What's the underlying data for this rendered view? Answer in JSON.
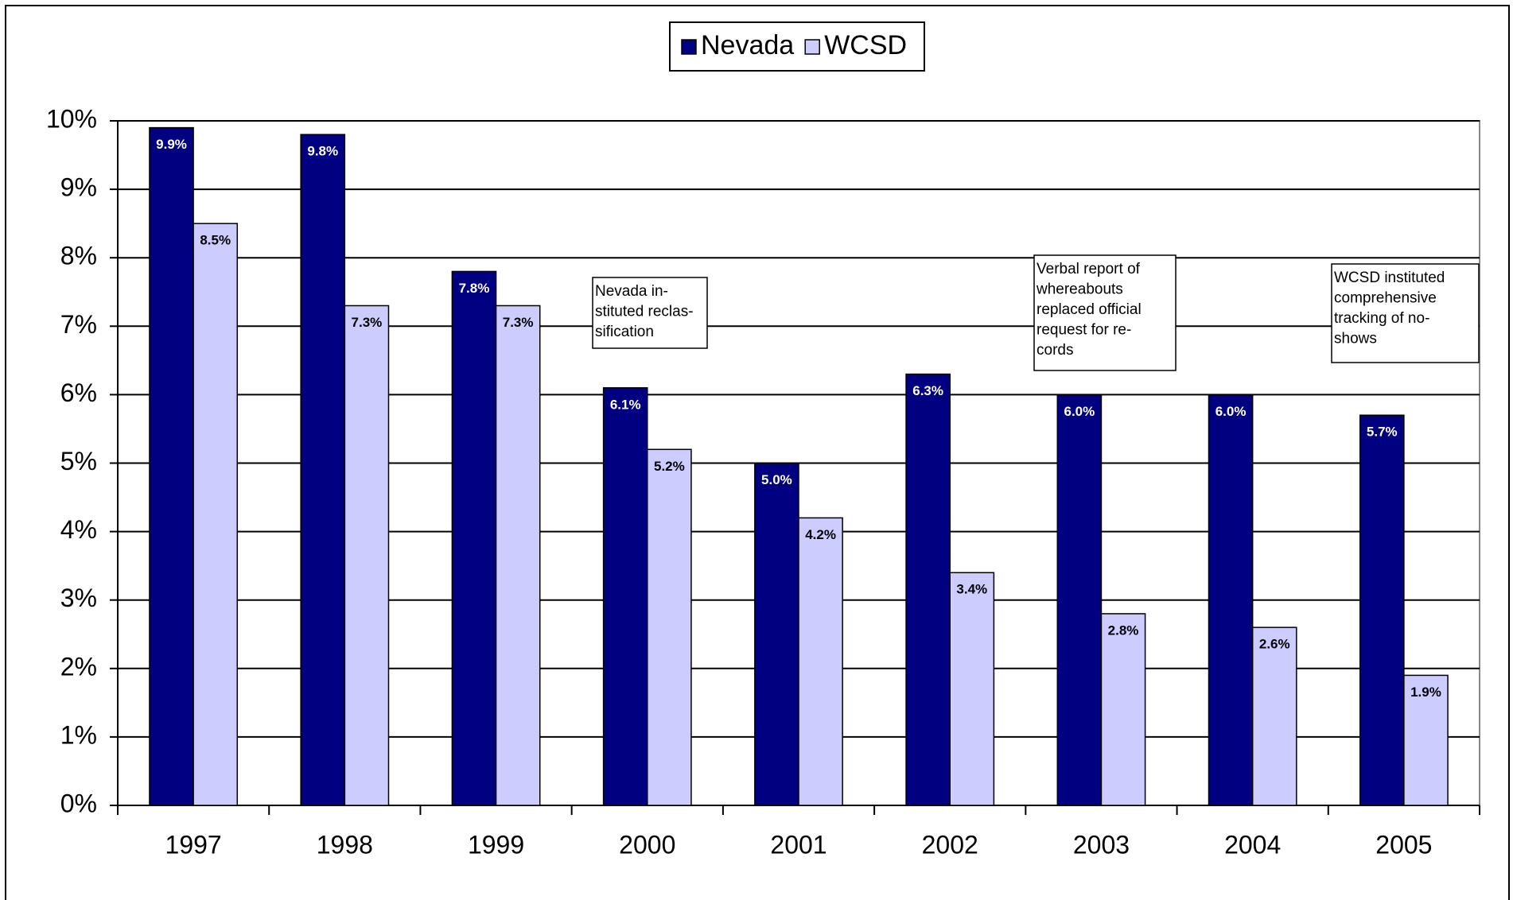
{
  "chart_data": {
    "type": "bar",
    "categories": [
      "1997",
      "1998",
      "1999",
      "2000",
      "2001",
      "2002",
      "2003",
      "2004",
      "2005"
    ],
    "series": [
      {
        "name": "Nevada",
        "color": "#000080",
        "values": [
          9.9,
          9.8,
          7.8,
          6.1,
          5.0,
          6.3,
          6.0,
          6.0,
          5.7
        ],
        "value_labels": [
          "9.9%",
          "9.8%",
          "7.8%",
          "6.1%",
          "5.0%",
          "6.3%",
          "6.0%",
          "6.0%",
          "5.7%"
        ]
      },
      {
        "name": "WCSD",
        "color": "#ccccff",
        "values": [
          8.5,
          7.3,
          7.3,
          5.2,
          4.2,
          3.4,
          2.8,
          2.6,
          1.9
        ],
        "value_labels": [
          "8.5%",
          "7.3%",
          "7.3%",
          "5.2%",
          "4.2%",
          "3.4%",
          "2.8%",
          "2.6%",
          "1.9%"
        ]
      }
    ],
    "ylim": [
      0,
      10
    ],
    "yticks": [
      {
        "value": 0,
        "label": "0%"
      },
      {
        "value": 1,
        "label": "1%"
      },
      {
        "value": 2,
        "label": "2%"
      },
      {
        "value": 3,
        "label": "3%"
      },
      {
        "value": 4,
        "label": "4%"
      },
      {
        "value": 5,
        "label": "5%"
      },
      {
        "value": 6,
        "label": "6%"
      },
      {
        "value": 7,
        "label": "7%"
      },
      {
        "value": 8,
        "label": "8%"
      },
      {
        "value": 9,
        "label": "9%"
      },
      {
        "value": 10,
        "label": "10%"
      }
    ],
    "grid": true,
    "legend": "top",
    "annotations": [
      {
        "lines": [
          "Nevada in-",
          "stituted reclas-",
          "sification"
        ]
      },
      {
        "lines": [
          "Verbal report of",
          "whereabouts",
          "replaced official",
          "request for re-",
          "cords"
        ]
      },
      {
        "lines": [
          "WCSD instituted",
          "comprehensive",
          "tracking of no-",
          "shows"
        ]
      }
    ]
  }
}
